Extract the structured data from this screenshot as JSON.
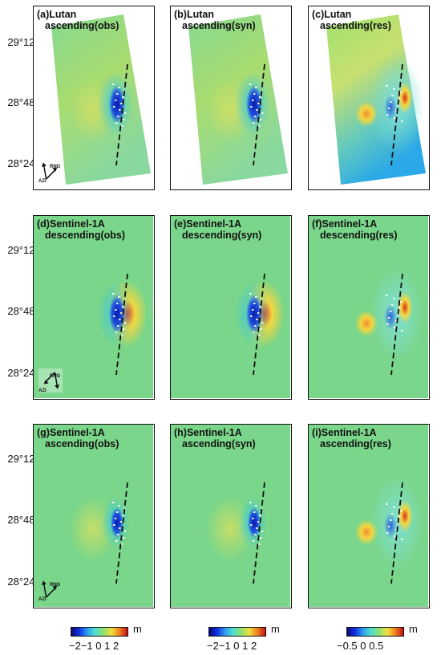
{
  "y_axis": {
    "row1": [
      "29°12'",
      "28°48'",
      "28°24'"
    ],
    "row2": [
      "29°12'",
      "28°48'",
      "28°24'"
    ],
    "row3": [
      "29°12'",
      "28°48'",
      "28°24'"
    ]
  },
  "panels": [
    {
      "id": "a",
      "line1": "(a)Lutan",
      "line2": "ascending(obs)",
      "kind": "lutan",
      "compass_labels": [
        "RNG",
        "AZI"
      ]
    },
    {
      "id": "b",
      "line1": "(b)Lutan",
      "line2": "ascending(syn)",
      "kind": "lutan"
    },
    {
      "id": "c",
      "line1": "(c)Lutan",
      "line2": "ascending(res)",
      "kind": "lutan-res"
    },
    {
      "id": "d",
      "line1": "(d)Sentinel-1A",
      "line2": "descending(obs)",
      "kind": "desc",
      "compass_labels": [
        "RNG",
        "AZI"
      ]
    },
    {
      "id": "e",
      "line1": "(e)Sentinel-1A",
      "line2": "descending(syn)",
      "kind": "desc"
    },
    {
      "id": "f",
      "line1": "(f)Sentinel-1A",
      "line2": "descending(res)",
      "kind": "desc-res"
    },
    {
      "id": "g",
      "line1": "(g)Sentinel-1A",
      "line2": "ascending(obs)",
      "kind": "asc",
      "compass_labels": [
        "RNG",
        "AZI"
      ]
    },
    {
      "id": "h",
      "line1": "(h)Sentinel-1A",
      "line2": "ascending(syn)",
      "kind": "asc"
    },
    {
      "id": "i",
      "line1": "(i)Sentinel-1A",
      "line2": "ascending(res)",
      "kind": "asc-res"
    }
  ],
  "colorbars": [
    {
      "unit": "m",
      "ticks": "−2−1 0 1 2"
    },
    {
      "unit": "m",
      "ticks": "−2−1 0 1 2"
    },
    {
      "unit": "m",
      "ticks": "−0.5 0 0.5"
    }
  ],
  "colors": {
    "background_green": "#7ad68a",
    "lutan_background": "#8ed87c",
    "deep_blue": "#0a1aa8",
    "red": "#e0301a",
    "yellow": "#f2d740",
    "cyan": "#38c8e0"
  }
}
